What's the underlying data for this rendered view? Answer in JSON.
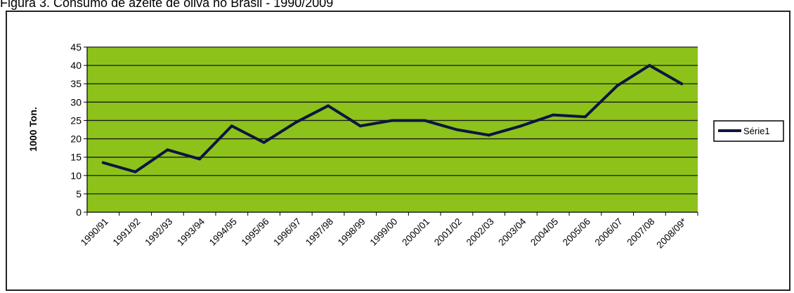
{
  "caption": "Figura 3. Consumo de azeite de oliva no Brasil - 1990/2009",
  "chart_data": {
    "type": "line",
    "title": "",
    "xlabel": "",
    "ylabel": "1000 Ton.",
    "ylim": [
      0,
      45
    ],
    "yticks": [
      0,
      5,
      10,
      15,
      20,
      25,
      30,
      35,
      40,
      45
    ],
    "grid": true,
    "legend_position": "right",
    "plot_background": "#8cc21a",
    "gridline_color": "#1a1a1a",
    "categories": [
      "1990/91",
      "1991/92",
      "1992/93",
      "1993/94",
      "1994/95",
      "1995/96",
      "1996/97",
      "1997/98",
      "1998/99",
      "1999/00",
      "2000/01",
      "2001/02",
      "2002/03",
      "2003/04",
      "2004/05",
      "2005/06",
      "2006/07",
      "2007/08",
      "2008/09*"
    ],
    "series": [
      {
        "name": "Série1",
        "color": "#0d1540",
        "values": [
          13.5,
          11,
          17,
          14.5,
          23.5,
          19,
          24.5,
          29,
          23.5,
          25,
          25,
          22.5,
          21,
          23.5,
          26.5,
          26,
          34.5,
          40,
          35
        ]
      }
    ]
  }
}
